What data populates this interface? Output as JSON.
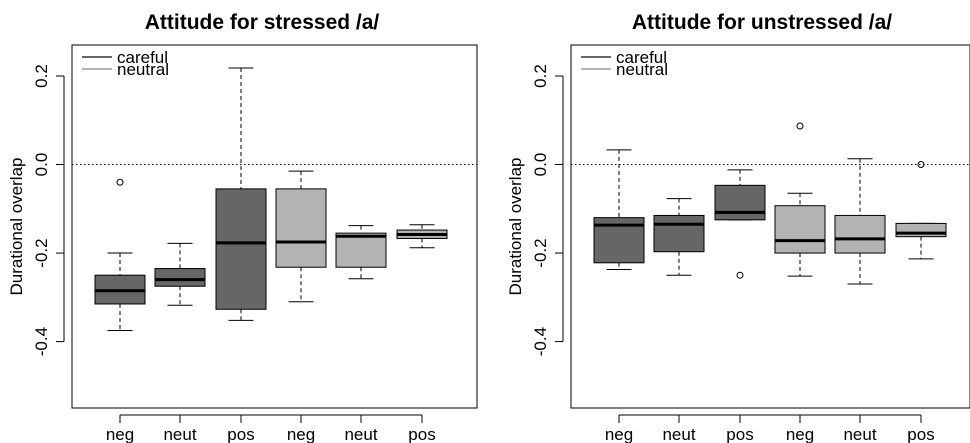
{
  "chart_data": [
    {
      "type": "boxplot",
      "title": "Attitude for stressed /a/",
      "ylabel": "Durational overlap",
      "ylim": [
        -0.55,
        0.27
      ],
      "yticks": [
        0.2,
        0.0,
        -0.2,
        -0.4
      ],
      "ytick_labels": [
        "0.2",
        "0.0",
        "-0.2",
        "-0.4"
      ],
      "reference_line": 0.0,
      "categories": [
        "neg",
        "neut",
        "pos",
        "neg",
        "neut",
        "pos"
      ],
      "legend": {
        "placement": "top-left",
        "entries": [
          {
            "label": "careful",
            "color": "#666666"
          },
          {
            "label": "neutral",
            "color": "#b3b3b3"
          }
        ]
      },
      "boxes": [
        {
          "group": "careful",
          "color": "#666666",
          "whisker_low": -0.375,
          "q1": -0.315,
          "median": -0.285,
          "q3": -0.25,
          "whisker_high": -0.2,
          "outliers": [
            -0.04
          ]
        },
        {
          "group": "careful",
          "color": "#666666",
          "whisker_low": -0.318,
          "q1": -0.275,
          "median": -0.26,
          "q3": -0.235,
          "whisker_high": -0.178,
          "outliers": []
        },
        {
          "group": "careful",
          "color": "#666666",
          "whisker_low": -0.352,
          "q1": -0.327,
          "median": -0.177,
          "q3": -0.055,
          "whisker_high": 0.218,
          "outliers": []
        },
        {
          "group": "neutral",
          "color": "#b3b3b3",
          "whisker_low": -0.31,
          "q1": -0.232,
          "median": -0.175,
          "q3": -0.055,
          "whisker_high": -0.015,
          "outliers": []
        },
        {
          "group": "neutral",
          "color": "#b3b3b3",
          "whisker_low": -0.258,
          "q1": -0.232,
          "median": -0.162,
          "q3": -0.155,
          "whisker_high": -0.138,
          "outliers": []
        },
        {
          "group": "neutral",
          "color": "#b3b3b3",
          "whisker_low": -0.188,
          "q1": -0.167,
          "median": -0.158,
          "q3": -0.148,
          "whisker_high": -0.136,
          "outliers": []
        }
      ]
    },
    {
      "type": "boxplot",
      "title": "Attitude for unstressed /a/",
      "ylabel": "Durational overlap",
      "ylim": [
        -0.55,
        0.27
      ],
      "yticks": [
        0.2,
        0.0,
        -0.2,
        -0.4
      ],
      "ytick_labels": [
        "0.2",
        "0.0",
        "-0.2",
        "-0.4"
      ],
      "reference_line": 0.0,
      "categories": [
        "neg",
        "neut",
        "pos",
        "neg",
        "neut",
        "pos"
      ],
      "legend": {
        "placement": "top-left",
        "entries": [
          {
            "label": "careful",
            "color": "#666666"
          },
          {
            "label": "neutral",
            "color": "#b3b3b3"
          }
        ]
      },
      "boxes": [
        {
          "group": "careful",
          "color": "#666666",
          "whisker_low": -0.237,
          "q1": -0.222,
          "median": -0.137,
          "q3": -0.12,
          "whisker_high": 0.033,
          "outliers": []
        },
        {
          "group": "careful",
          "color": "#666666",
          "whisker_low": -0.25,
          "q1": -0.197,
          "median": -0.135,
          "q3": -0.115,
          "whisker_high": -0.077,
          "outliers": []
        },
        {
          "group": "careful",
          "color": "#666666",
          "whisker_low": -0.125,
          "q1": -0.125,
          "median": -0.108,
          "q3": -0.047,
          "whisker_high": -0.012,
          "outliers": [
            -0.25
          ]
        },
        {
          "group": "neutral",
          "color": "#b3b3b3",
          "whisker_low": -0.252,
          "q1": -0.2,
          "median": -0.172,
          "q3": -0.093,
          "whisker_high": -0.065,
          "outliers": [
            0.087
          ]
        },
        {
          "group": "neutral",
          "color": "#b3b3b3",
          "whisker_low": -0.27,
          "q1": -0.2,
          "median": -0.168,
          "q3": -0.115,
          "whisker_high": 0.013,
          "outliers": []
        },
        {
          "group": "neutral",
          "color": "#b3b3b3",
          "whisker_low": -0.213,
          "q1": -0.163,
          "median": -0.155,
          "q3": -0.133,
          "whisker_high": -0.133,
          "outliers": [
            0.0
          ]
        }
      ]
    }
  ]
}
